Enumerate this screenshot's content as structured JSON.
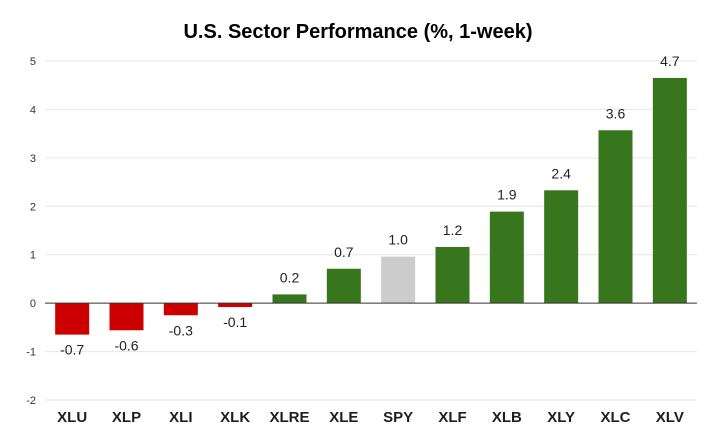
{
  "chart_data": {
    "type": "bar",
    "title": "U.S. Sector Performance (%, 1-week)",
    "xlabel": "",
    "ylabel": "",
    "categories": [
      "XLU",
      "XLP",
      "XLI",
      "XLK",
      "XLRE",
      "XLE",
      "SPY",
      "XLF",
      "XLB",
      "XLY",
      "XLC",
      "XLV"
    ],
    "values": [
      -0.7,
      -0.6,
      -0.3,
      -0.1,
      0.2,
      0.7,
      1.0,
      1.2,
      1.9,
      2.4,
      3.6,
      4.7
    ],
    "data_labels": [
      "-0.7",
      "-0.6",
      "-0.3",
      "-0.1",
      "0.2",
      "0.7",
      "1.0",
      "1.2",
      "1.9",
      "2.4",
      "3.6",
      "4.7"
    ],
    "bar_values": [
      -0.65,
      -0.56,
      -0.25,
      -0.08,
      0.18,
      0.71,
      0.96,
      1.16,
      1.89,
      2.33,
      3.57,
      4.65
    ],
    "ylim": [
      -2,
      5
    ],
    "yticks": [
      "5",
      "4",
      "3",
      "2",
      "1",
      "0",
      "-1",
      "-2"
    ],
    "grid": true,
    "legend": "none",
    "colors": {
      "negative": "#cc0000",
      "positive": "#38761d",
      "benchmark": "#cccccc"
    },
    "benchmark_category": "SPY"
  }
}
